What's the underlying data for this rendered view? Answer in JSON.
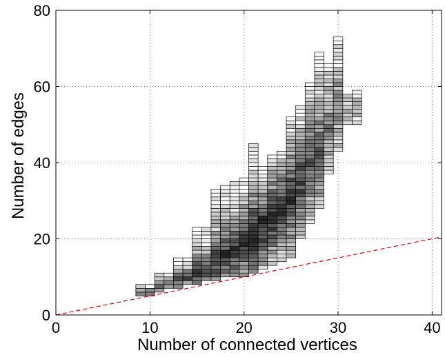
{
  "chart_data": {
    "type": "heatmap",
    "title": "",
    "xlabel": "Number of connected vertices",
    "ylabel": "Number of edges",
    "xlim": [
      0,
      41
    ],
    "ylim": [
      0,
      80
    ],
    "xticks": [
      0,
      10,
      20,
      30,
      40
    ],
    "yticks": [
      0,
      20,
      40,
      60,
      80
    ],
    "grid": true,
    "grid_style": "dotted",
    "cell_width": 1,
    "cell_height": 1,
    "columns": [
      {
        "x": 9,
        "ymin": 5,
        "ymax": 8,
        "peak": 6,
        "intensity": 0.55
      },
      {
        "x": 10,
        "ymin": 5,
        "ymax": 8,
        "peak": 6,
        "intensity": 0.6
      },
      {
        "x": 11,
        "ymin": 6,
        "ymax": 11,
        "peak": 8,
        "intensity": 0.65
      },
      {
        "x": 12,
        "ymin": 7,
        "ymax": 11,
        "peak": 8,
        "intensity": 0.7
      },
      {
        "x": 13,
        "ymin": 7,
        "ymax": 15,
        "peak": 9,
        "intensity": 0.75
      },
      {
        "x": 14,
        "ymin": 8,
        "ymax": 15,
        "peak": 10,
        "intensity": 0.78
      },
      {
        "x": 15,
        "ymin": 8,
        "ymax": 23,
        "peak": 11,
        "intensity": 0.8
      },
      {
        "x": 16,
        "ymin": 9,
        "ymax": 23,
        "peak": 12,
        "intensity": 0.82
      },
      {
        "x": 17,
        "ymin": 9,
        "ymax": 33,
        "peak": 14,
        "intensity": 0.85
      },
      {
        "x": 18,
        "ymin": 10,
        "ymax": 34,
        "peak": 16,
        "intensity": 0.87
      },
      {
        "x": 19,
        "ymin": 10,
        "ymax": 35,
        "peak": 17,
        "intensity": 0.88
      },
      {
        "x": 20,
        "ymin": 10,
        "ymax": 36,
        "peak": 19,
        "intensity": 0.9
      },
      {
        "x": 21,
        "ymin": 11,
        "ymax": 45,
        "peak": 21,
        "intensity": 0.92
      },
      {
        "x": 22,
        "ymin": 12,
        "ymax": 39,
        "peak": 23,
        "intensity": 0.92
      },
      {
        "x": 23,
        "ymin": 13,
        "ymax": 42,
        "peak": 26,
        "intensity": 0.9
      },
      {
        "x": 24,
        "ymin": 14,
        "ymax": 43,
        "peak": 28,
        "intensity": 0.88
      },
      {
        "x": 25,
        "ymin": 15,
        "ymax": 52,
        "peak": 31,
        "intensity": 0.85
      },
      {
        "x": 26,
        "ymin": 20,
        "ymax": 55,
        "peak": 35,
        "intensity": 0.8
      },
      {
        "x": 27,
        "ymin": 24,
        "ymax": 61,
        "peak": 40,
        "intensity": 0.72
      },
      {
        "x": 28,
        "ymin": 28,
        "ymax": 69,
        "peak": 44,
        "intensity": 0.65
      },
      {
        "x": 29,
        "ymin": 37,
        "ymax": 66,
        "peak": 50,
        "intensity": 0.55
      },
      {
        "x": 30,
        "ymin": 43,
        "ymax": 73,
        "peak": 55,
        "intensity": 0.5
      },
      {
        "x": 31,
        "ymin": 50,
        "ymax": 58,
        "peak": 54,
        "intensity": 0.45
      },
      {
        "x": 32,
        "ymin": 50,
        "ymax": 59,
        "peak": 55,
        "intensity": 0.4
      }
    ],
    "reference_line": {
      "style": "dashed",
      "color": "#e00000",
      "x": [
        0,
        41
      ],
      "y": [
        0,
        20.5
      ]
    }
  },
  "colors": {
    "grid": "#7a7a7a",
    "cell_border": "#000000",
    "reference_line": "#e00000"
  }
}
